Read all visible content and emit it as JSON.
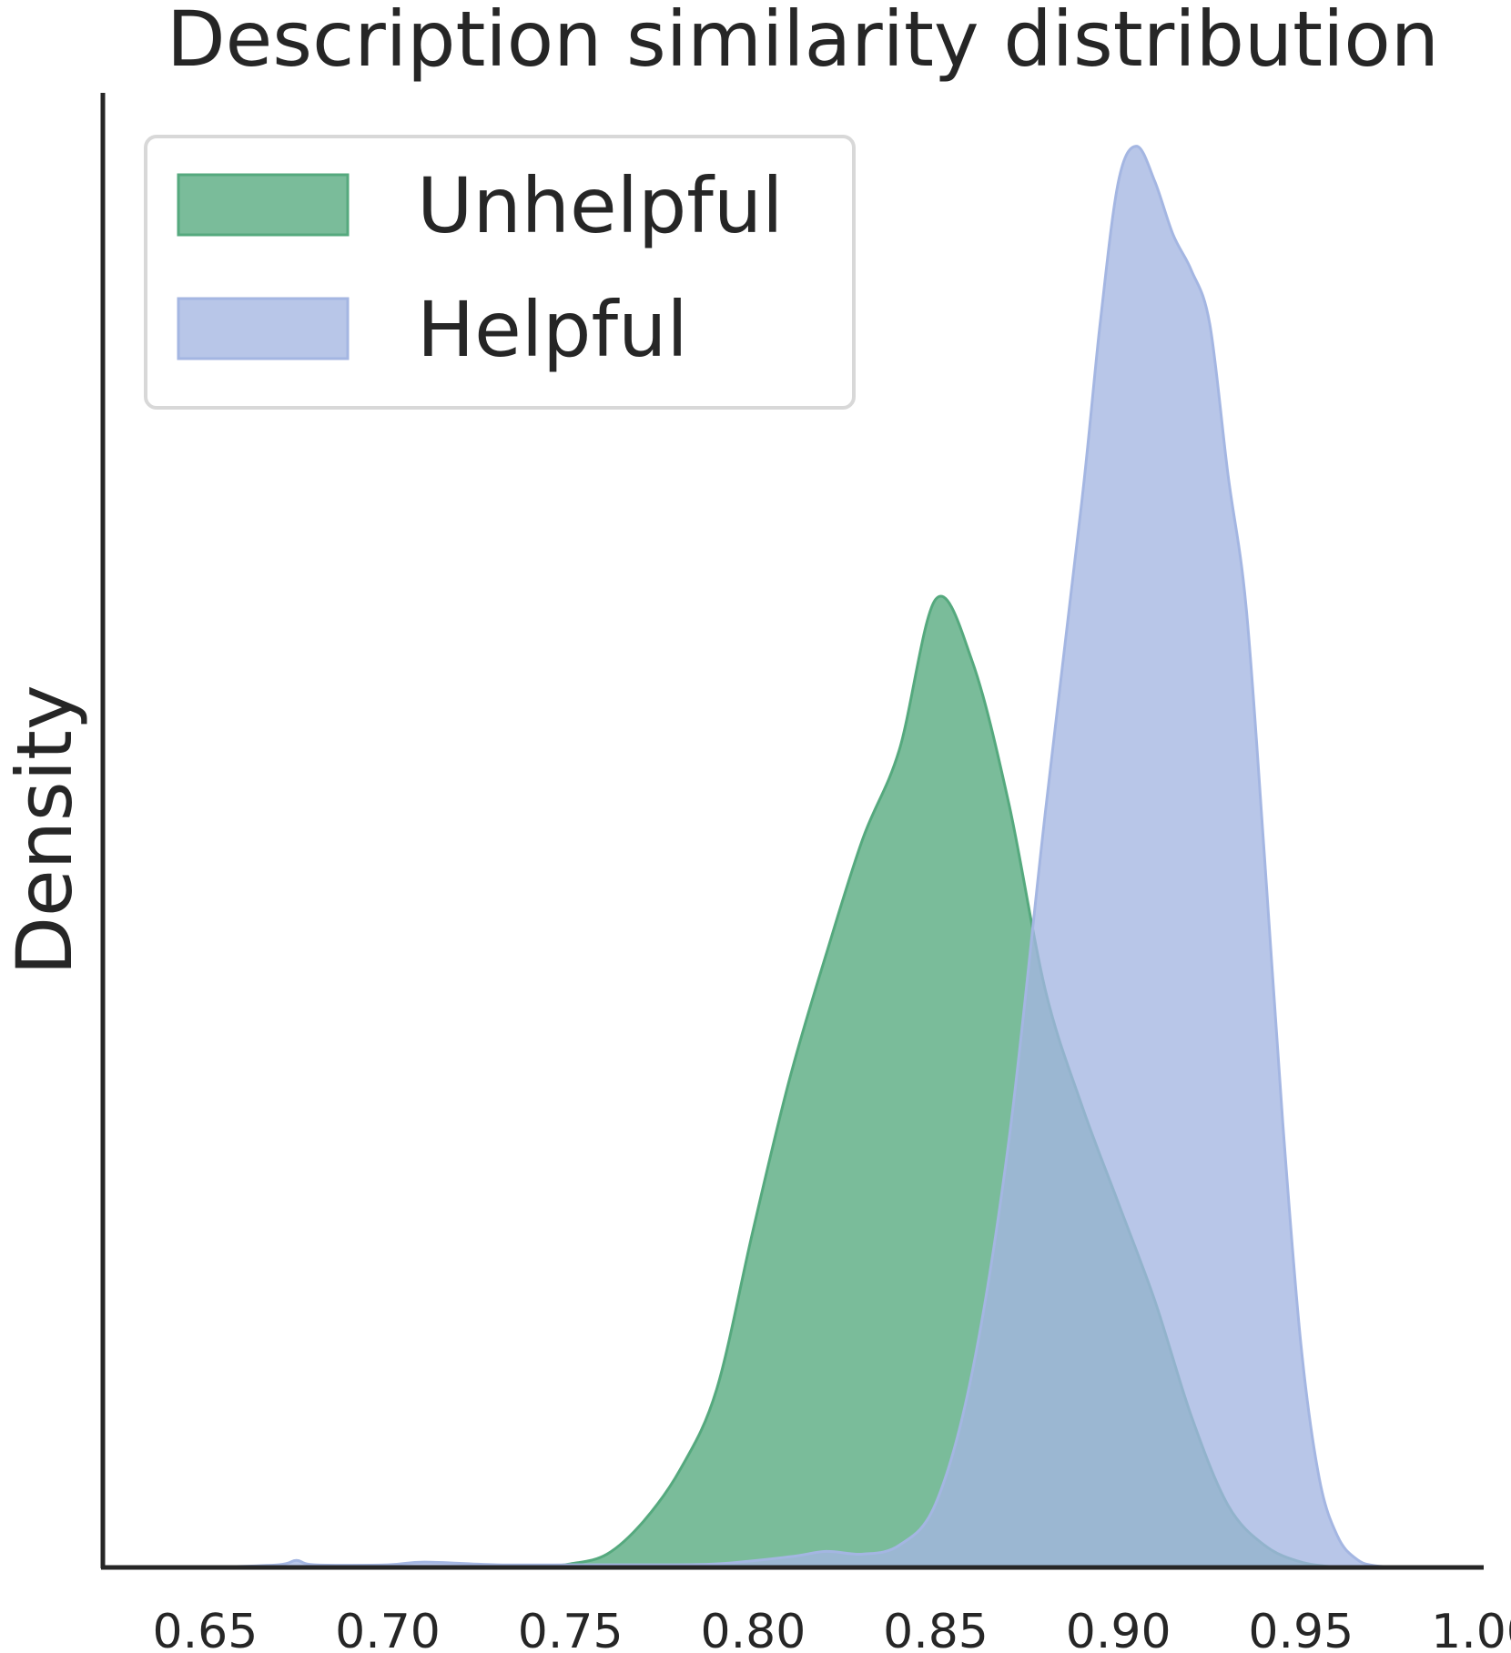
{
  "chart_data": {
    "type": "area",
    "title": "Description similarity distribution",
    "xlabel": "",
    "ylabel": "Density",
    "xlim": [
      0.622,
      1.0
    ],
    "ylim": [
      0,
      16.6
    ],
    "xticks": [
      "0.65",
      "0.70",
      "0.75",
      "0.80",
      "0.85",
      "0.90",
      "0.95",
      "1.00"
    ],
    "xtick_values": [
      0.65,
      0.7,
      0.75,
      0.8,
      0.85,
      0.9,
      0.95,
      1.0
    ],
    "grid": false,
    "legend_position": "top-left",
    "series": [
      {
        "name": "Unhelpful",
        "color": "#55a97e",
        "x": [
          0.74,
          0.75,
          0.76,
          0.77,
          0.78,
          0.79,
          0.8,
          0.81,
          0.82,
          0.83,
          0.84,
          0.85,
          0.86,
          0.87,
          0.88,
          0.89,
          0.9,
          0.91,
          0.92,
          0.93,
          0.94,
          0.95,
          0.96
        ],
        "y": [
          0.0,
          0.04,
          0.15,
          0.52,
          1.1,
          2.0,
          3.8,
          5.5,
          6.9,
          8.2,
          9.2,
          10.9,
          10.2,
          8.6,
          6.5,
          5.2,
          4.1,
          3.0,
          1.7,
          0.7,
          0.25,
          0.06,
          0.0
        ]
      },
      {
        "name": "Helpful",
        "color": "#a4b6e2",
        "x": [
          0.65,
          0.67,
          0.675,
          0.68,
          0.7,
          0.71,
          0.73,
          0.75,
          0.77,
          0.79,
          0.81,
          0.82,
          0.83,
          0.84,
          0.85,
          0.86,
          0.87,
          0.88,
          0.89,
          0.895,
          0.9,
          0.905,
          0.91,
          0.915,
          0.92,
          0.925,
          0.93,
          0.935,
          0.94,
          0.945,
          0.95,
          0.955,
          0.96,
          0.965,
          0.97,
          0.98
        ],
        "y": [
          0.0,
          0.03,
          0.08,
          0.03,
          0.03,
          0.06,
          0.03,
          0.03,
          0.03,
          0.04,
          0.12,
          0.18,
          0.15,
          0.25,
          0.72,
          2.2,
          4.8,
          8.5,
          12.0,
          14.0,
          15.6,
          16.0,
          15.6,
          15.0,
          14.6,
          14.0,
          12.3,
          10.8,
          8.0,
          5.0,
          2.5,
          1.0,
          0.35,
          0.1,
          0.02,
          0.0
        ]
      }
    ]
  }
}
